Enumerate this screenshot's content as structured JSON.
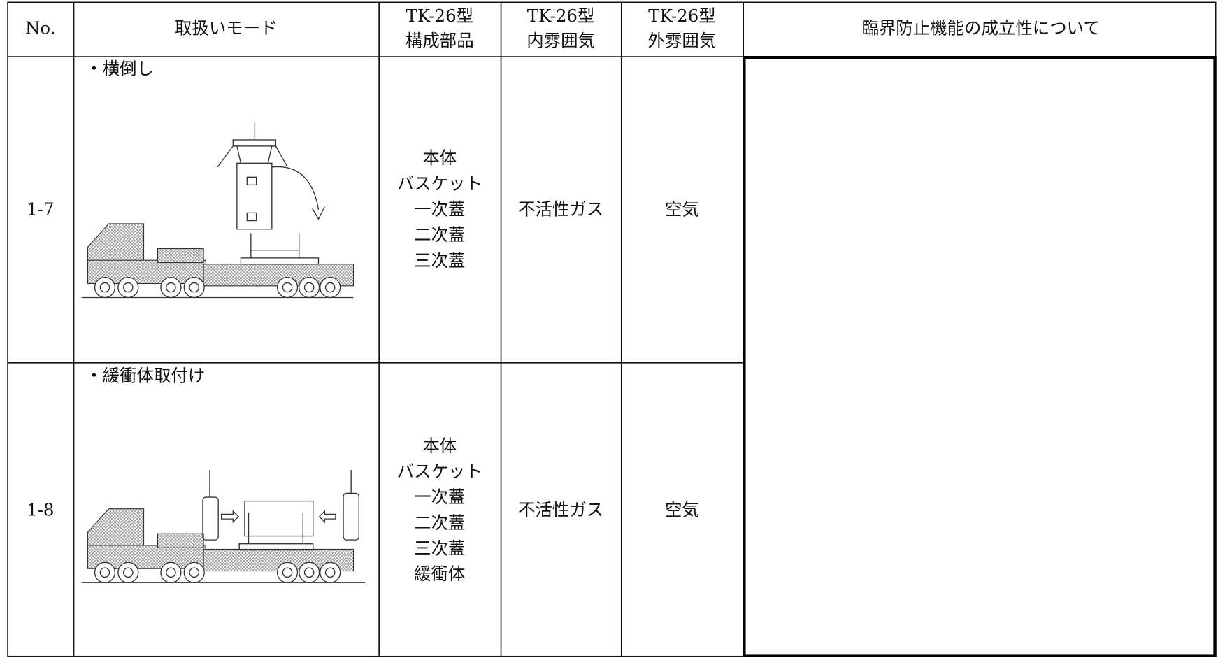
{
  "header": {
    "no": "No.",
    "mode": "取扱いモード",
    "parts": [
      "TK-26型",
      "構成部品"
    ],
    "inner": [
      "TK-26型",
      "内雰囲気"
    ],
    "outer": [
      "TK-26型",
      "外雰囲気"
    ],
    "criticality": "臨界防止機能の成立性について"
  },
  "rows": [
    {
      "no": "1-7",
      "mode": "・横倒し",
      "parts": [
        "本体",
        "バスケット",
        "一次蓋",
        "二次蓋",
        "三次蓋"
      ],
      "inner": "不活性ガス",
      "outer": "空気"
    },
    {
      "no": "1-8",
      "mode": "・緩衝体取付け",
      "parts": [
        "本体",
        "バスケット",
        "一次蓋",
        "二次蓋",
        "三次蓋",
        "緩衝体"
      ],
      "inner": "不活性ガス",
      "outer": "空気"
    }
  ]
}
